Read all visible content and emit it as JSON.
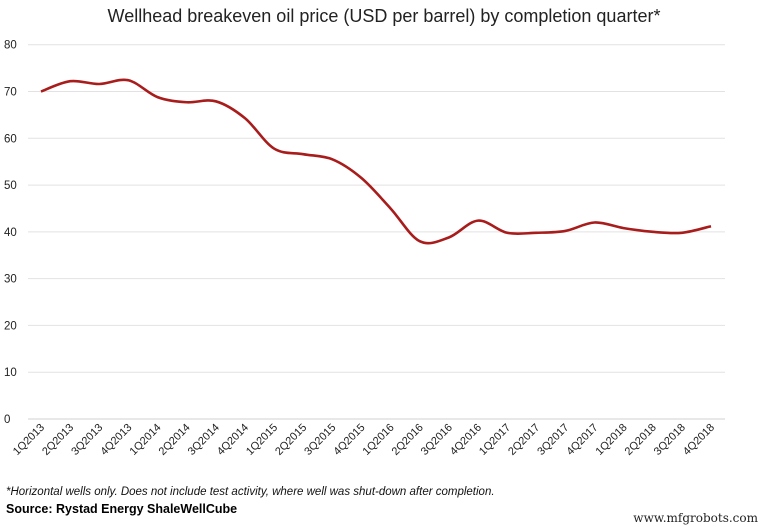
{
  "chart_data": {
    "type": "line",
    "title": "Wellhead breakeven oil price (USD per barrel) by completion quarter*",
    "xlabel": "",
    "ylabel": "",
    "ylim": [
      0,
      80
    ],
    "yticks": [
      0,
      10,
      20,
      30,
      40,
      50,
      60,
      70,
      80
    ],
    "grid": true,
    "line_color": "#a81c1c",
    "categories": [
      "1Q2013",
      "2Q2013",
      "3Q2013",
      "4Q2013",
      "1Q2014",
      "2Q2014",
      "3Q2014",
      "4Q2014",
      "1Q2015",
      "2Q2015",
      "3Q2015",
      "4Q2015",
      "1Q2016",
      "2Q2016",
      "3Q2016",
      "4Q2016",
      "1Q2017",
      "2Q2017",
      "3Q2017",
      "4Q2017",
      "1Q2018",
      "2Q2018",
      "3Q2018",
      "4Q2018"
    ],
    "series": [
      {
        "values": [
          70,
          72.2,
          71.6,
          72.4,
          68.8,
          67.7,
          67.9,
          64.3,
          57.8,
          56.6,
          55.5,
          51.5,
          45,
          38,
          38.8,
          42.4,
          39.8,
          39.8,
          40.2,
          42,
          40.8,
          40,
          39.8,
          41.2
        ]
      }
    ]
  },
  "footnote": "*Horizontal wells only. Does not include test activity, where well was shut-down after completion.",
  "source": "Source: Rystad Energy ShaleWellCube",
  "watermark": "www.mfgrobots.com"
}
